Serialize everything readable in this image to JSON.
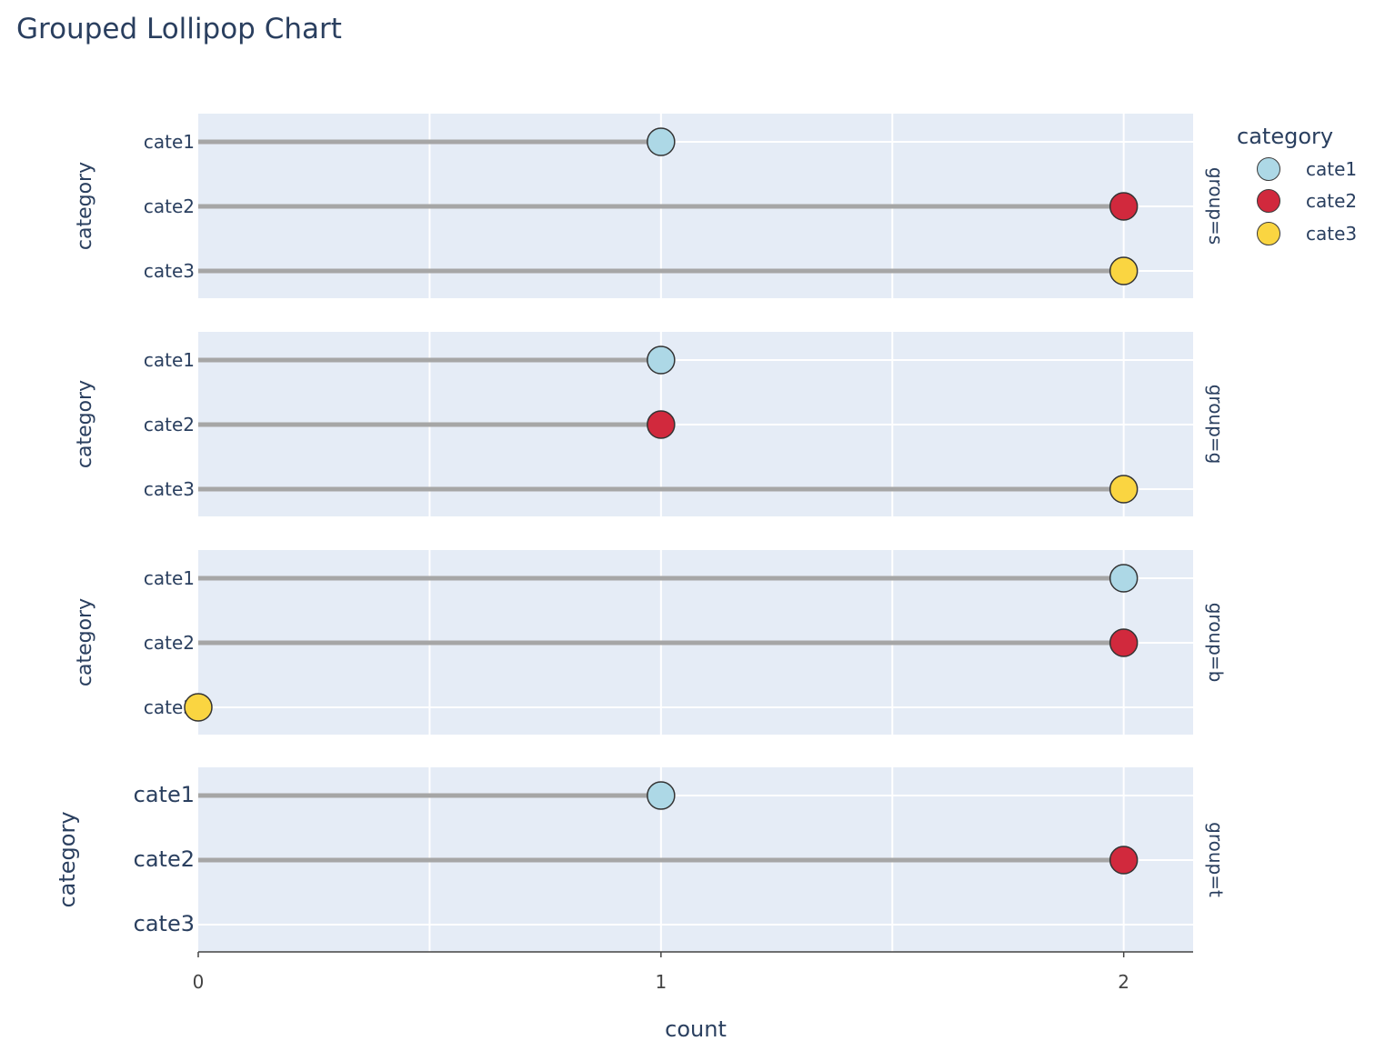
{
  "chart_data": {
    "type": "lollipop",
    "title": "Grouped Lollipop Chart",
    "xlabel": "count",
    "ylabel": "category",
    "xlim": [
      0,
      2.15
    ],
    "x_ticks": [
      0,
      1,
      2
    ],
    "categories": [
      "cate1",
      "cate2",
      "cate3"
    ],
    "legend": {
      "title": "category",
      "position": "top-right",
      "entries": [
        {
          "name": "cate1",
          "color": "#add8e6"
        },
        {
          "name": "cate2",
          "color": "#d1293d"
        },
        {
          "name": "cate3",
          "color": "#fad541"
        }
      ]
    },
    "stem_color": "#a6a6a6",
    "panel_color": "#e5ecf6",
    "panels": [
      {
        "label": "group=s",
        "values": [
          1,
          2,
          2
        ]
      },
      {
        "label": "group=g",
        "values": [
          1,
          1,
          2
        ]
      },
      {
        "label": "group=b",
        "values": [
          2,
          2,
          0
        ]
      },
      {
        "label": "group=t",
        "values": [
          1,
          2,
          null
        ]
      }
    ]
  }
}
